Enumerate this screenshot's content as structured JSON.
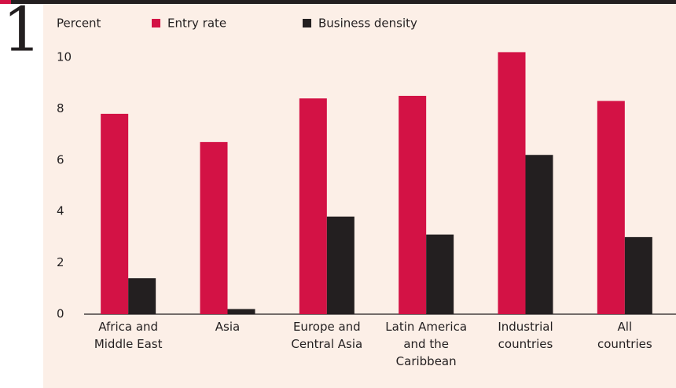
{
  "chart_data": {
    "type": "bar",
    "figure_label": "1",
    "y_axis_label": "Percent",
    "categories": [
      "Africa and\nMiddle East",
      "Asia",
      "Europe and\nCentral Asia",
      "Latin America\nand the\nCaribbean",
      "Industrial\ncountries",
      "All\ncountries"
    ],
    "series": [
      {
        "name": "Entry rate",
        "color": "#d31245",
        "values": [
          7.8,
          6.7,
          8.4,
          8.5,
          10.2,
          8.3
        ]
      },
      {
        "name": "Business density",
        "color": "#231f20",
        "values": [
          1.4,
          0.2,
          3.8,
          3.1,
          6.2,
          3.0
        ]
      }
    ],
    "ylim": [
      0,
      10.5
    ],
    "yticks": [
      0,
      2,
      4,
      6,
      8,
      10
    ],
    "grid": false
  }
}
